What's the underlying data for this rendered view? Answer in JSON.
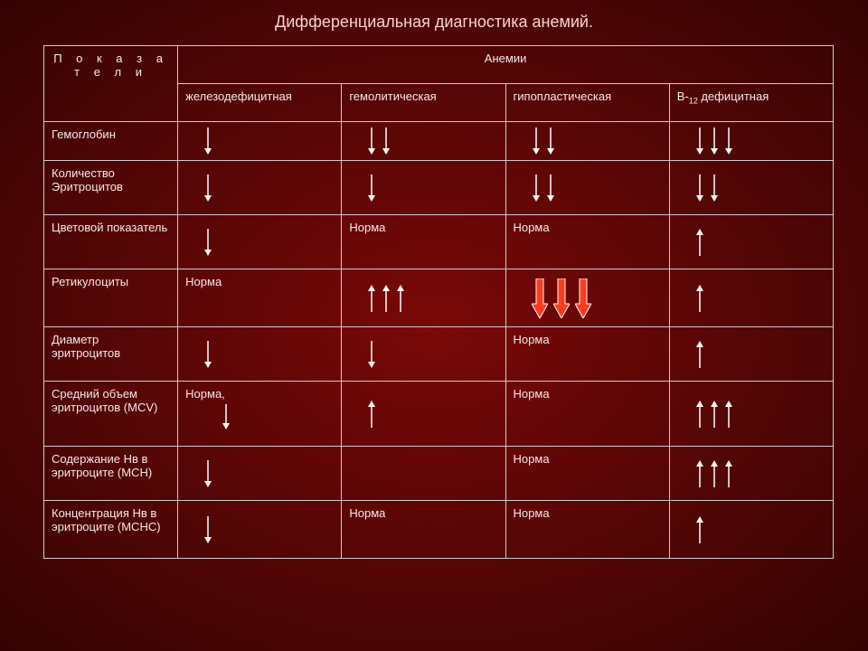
{
  "title": "Дифференциальная диагностика анемий.",
  "header": {
    "indicators": "П о к а з а т е л и",
    "anemias": "Анемии",
    "col1": "железодефицитная",
    "col2": "гемолитическая",
    "col3": "гипопластическая",
    "col4_a": "В-",
    "col4_sub": "12",
    "col4_b": " дефицитная"
  },
  "rows": {
    "r1": "Гемоглобин",
    "r2": "Количество Эритроцитов",
    "r3": "Цветовой показатель",
    "r4": "Ретикулоциты",
    "r5": "Диаметр эритроцитов",
    "r6": "Средний объем эритроцитов (MCV)",
    "r7": "Содержание Нв в эритроците (МСН)",
    "r8": "Концентрация Нв в эритроците (МСНС)"
  },
  "norm": "Норма",
  "norm_comma": "Норма,",
  "arrows": {
    "thin_white": {
      "stroke": "#ffffff",
      "fill": "#ffffff",
      "w": 10,
      "h": 30,
      "head": 5
    },
    "thick_red_down": {
      "stroke": "#ffffff",
      "fill": "#ff3b1f",
      "w": 18,
      "h": 44
    }
  },
  "cells": {
    "r1": [
      {
        "type": "arrows",
        "dir": "down",
        "count": 1,
        "style": "thin"
      },
      {
        "type": "arrows",
        "dir": "down",
        "count": 2,
        "style": "thin"
      },
      {
        "type": "arrows",
        "dir": "down",
        "count": 2,
        "style": "thin"
      },
      {
        "type": "arrows",
        "dir": "down",
        "count": 3,
        "style": "thin"
      }
    ],
    "r2": [
      {
        "type": "arrows",
        "dir": "down",
        "count": 1,
        "style": "thin"
      },
      {
        "type": "arrows",
        "dir": "down",
        "count": 1,
        "style": "thin"
      },
      {
        "type": "arrows",
        "dir": "down",
        "count": 2,
        "style": "thin"
      },
      {
        "type": "arrows",
        "dir": "down",
        "count": 2,
        "style": "thin"
      }
    ],
    "r3": [
      {
        "type": "arrows",
        "dir": "down",
        "count": 1,
        "style": "thin"
      },
      {
        "type": "text",
        "key": "norm"
      },
      {
        "type": "text",
        "key": "norm"
      },
      {
        "type": "arrows",
        "dir": "up",
        "count": 1,
        "style": "thin"
      }
    ],
    "r4": [
      {
        "type": "text",
        "key": "norm"
      },
      {
        "type": "arrows",
        "dir": "up",
        "count": 3,
        "style": "thin"
      },
      {
        "type": "arrows",
        "dir": "down",
        "count": 3,
        "style": "thick_red"
      },
      {
        "type": "arrows",
        "dir": "up",
        "count": 1,
        "style": "thin"
      }
    ],
    "r5": [
      {
        "type": "arrows",
        "dir": "down",
        "count": 1,
        "style": "thin"
      },
      {
        "type": "arrows",
        "dir": "down",
        "count": 1,
        "style": "thin"
      },
      {
        "type": "text",
        "key": "norm"
      },
      {
        "type": "arrows",
        "dir": "up",
        "count": 1,
        "style": "thin"
      }
    ],
    "r6": [
      {
        "type": "text_arrow",
        "key": "norm_comma",
        "dir": "down"
      },
      {
        "type": "arrows",
        "dir": "up",
        "count": 1,
        "style": "thin"
      },
      {
        "type": "text",
        "key": "norm"
      },
      {
        "type": "arrows",
        "dir": "up",
        "count": 3,
        "style": "thin"
      }
    ],
    "r7": [
      {
        "type": "arrows",
        "dir": "down",
        "count": 1,
        "style": "thin"
      },
      {
        "type": "empty"
      },
      {
        "type": "text",
        "key": "norm"
      },
      {
        "type": "arrows",
        "dir": "up",
        "count": 3,
        "style": "thin"
      }
    ],
    "r8": [
      {
        "type": "arrows",
        "dir": "down",
        "count": 1,
        "style": "thin"
      },
      {
        "type": "text",
        "key": "norm"
      },
      {
        "type": "text",
        "key": "norm"
      },
      {
        "type": "arrows",
        "dir": "up",
        "count": 1,
        "style": "thin"
      }
    ]
  },
  "layout": {
    "row_heights": {
      "r1": 42,
      "r2": 60,
      "r3": 60,
      "r4": 64,
      "r5": 60,
      "r6": 72,
      "r7": 60,
      "r8": 64
    }
  }
}
